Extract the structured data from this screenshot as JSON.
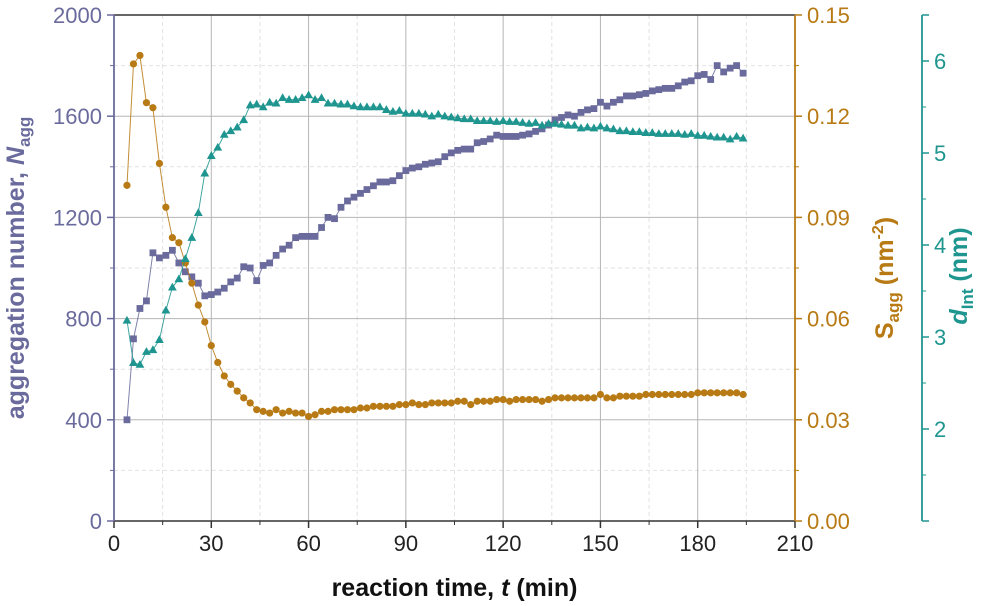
{
  "chart_data": {
    "type": "scatter",
    "xlabel": {
      "main": "reaction time, ",
      "var": "t",
      "unit": " (min)"
    },
    "xlim": [
      0,
      210
    ],
    "xticks": [
      0,
      30,
      60,
      90,
      120,
      150,
      180,
      210
    ],
    "grid": true,
    "axes": {
      "left": {
        "label": {
          "main": "aggregation number, ",
          "var": "N",
          "sub": "agg"
        },
        "ylim": [
          0,
          2000
        ],
        "ticks": [
          0,
          400,
          800,
          1200,
          1600,
          2000
        ],
        "decimals": 0,
        "color": "#6a6b9c"
      },
      "right1": {
        "label": {
          "var": "S",
          "sub": "agg",
          "unit": " (nm",
          "sup": "-2",
          "close": ")"
        },
        "ylim": [
          0,
          0.15
        ],
        "ticks": [
          0,
          0.03,
          0.06,
          0.09,
          0.12,
          0.15
        ],
        "decimals": 2,
        "color": "#b87a14"
      },
      "right2": {
        "label": {
          "var": "d",
          "sub": "Int",
          "unit": " (nm)"
        },
        "ylim": [
          1,
          6.5
        ],
        "ticks": [
          2,
          3,
          4,
          5,
          6
        ],
        "decimals": 0,
        "color": "#1f958f"
      }
    },
    "series": [
      {
        "axis": "left",
        "marker": "square",
        "color": "#6a6b9c",
        "x": [
          4,
          6,
          8,
          10,
          12,
          14,
          16,
          18,
          20,
          22,
          24,
          26,
          28,
          30,
          32,
          34,
          36,
          38,
          40,
          42,
          44,
          46,
          48,
          50,
          52,
          54,
          56,
          58,
          60,
          62,
          64,
          66,
          68,
          70,
          72,
          74,
          76,
          78,
          80,
          82,
          84,
          86,
          88,
          90,
          92,
          94,
          96,
          98,
          100,
          102,
          104,
          106,
          108,
          110,
          112,
          114,
          116,
          118,
          120,
          122,
          124,
          126,
          128,
          130,
          132,
          134,
          136,
          138,
          140,
          142,
          144,
          146,
          148,
          150,
          152,
          154,
          156,
          158,
          160,
          162,
          164,
          166,
          168,
          170,
          172,
          174,
          176,
          178,
          180,
          182,
          184,
          186,
          188,
          190,
          192,
          194
        ],
        "y": [
          400,
          720,
          840,
          870,
          1060,
          1040,
          1050,
          1070,
          1020,
          985,
          965,
          940,
          890,
          895,
          905,
          920,
          945,
          960,
          1005,
          1000,
          950,
          1010,
          1020,
          1050,
          1075,
          1090,
          1120,
          1125,
          1125,
          1125,
          1160,
          1200,
          1195,
          1240,
          1265,
          1280,
          1295,
          1310,
          1325,
          1340,
          1340,
          1345,
          1365,
          1385,
          1395,
          1400,
          1410,
          1415,
          1420,
          1440,
          1455,
          1465,
          1470,
          1470,
          1495,
          1500,
          1510,
          1525,
          1520,
          1520,
          1520,
          1525,
          1530,
          1540,
          1550,
          1565,
          1585,
          1595,
          1605,
          1600,
          1615,
          1625,
          1630,
          1655,
          1640,
          1655,
          1665,
          1680,
          1680,
          1685,
          1690,
          1700,
          1705,
          1710,
          1710,
          1720,
          1735,
          1740,
          1760,
          1765,
          1745,
          1800,
          1775,
          1790,
          1800,
          1770
        ]
      },
      {
        "axis": "right1",
        "marker": "circle",
        "color": "#b87a14",
        "x": [
          4,
          6,
          8,
          10,
          12,
          14,
          16,
          18,
          20,
          22,
          24,
          26,
          28,
          30,
          32,
          34,
          36,
          38,
          40,
          42,
          44,
          46,
          48,
          50,
          52,
          54,
          56,
          58,
          60,
          62,
          64,
          66,
          68,
          70,
          72,
          74,
          76,
          78,
          80,
          82,
          84,
          86,
          88,
          90,
          92,
          94,
          96,
          98,
          100,
          102,
          104,
          106,
          108,
          110,
          112,
          114,
          116,
          118,
          120,
          122,
          124,
          126,
          128,
          130,
          132,
          134,
          136,
          138,
          140,
          142,
          144,
          146,
          148,
          150,
          152,
          154,
          156,
          158,
          160,
          162,
          164,
          166,
          168,
          170,
          172,
          174,
          176,
          178,
          180,
          182,
          184,
          186,
          188,
          190,
          192,
          194
        ],
        "y": [
          0.0995,
          0.1355,
          0.138,
          0.124,
          0.1225,
          0.106,
          0.093,
          0.084,
          0.0825,
          0.0765,
          0.0705,
          0.064,
          0.059,
          0.052,
          0.047,
          0.043,
          0.0405,
          0.0385,
          0.0365,
          0.035,
          0.033,
          0.0325,
          0.032,
          0.033,
          0.032,
          0.0325,
          0.032,
          0.032,
          0.031,
          0.0315,
          0.0325,
          0.0325,
          0.033,
          0.033,
          0.033,
          0.033,
          0.0335,
          0.0335,
          0.034,
          0.034,
          0.034,
          0.034,
          0.0345,
          0.0345,
          0.035,
          0.0345,
          0.0345,
          0.035,
          0.035,
          0.035,
          0.035,
          0.0355,
          0.0355,
          0.0345,
          0.0355,
          0.0355,
          0.0355,
          0.036,
          0.036,
          0.0355,
          0.036,
          0.036,
          0.036,
          0.036,
          0.0355,
          0.036,
          0.0365,
          0.0365,
          0.0365,
          0.0365,
          0.0365,
          0.0365,
          0.0365,
          0.0375,
          0.0365,
          0.0365,
          0.037,
          0.037,
          0.037,
          0.037,
          0.0375,
          0.0375,
          0.0375,
          0.0375,
          0.0375,
          0.0375,
          0.0375,
          0.0375,
          0.038,
          0.038,
          0.038,
          0.038,
          0.038,
          0.038,
          0.038,
          0.0375
        ]
      },
      {
        "axis": "right2",
        "marker": "triangle",
        "color": "#1f958f",
        "x": [
          4,
          6,
          8,
          10,
          12,
          14,
          16,
          18,
          20,
          22,
          24,
          26,
          28,
          30,
          32,
          34,
          36,
          38,
          40,
          42,
          44,
          46,
          48,
          50,
          52,
          54,
          56,
          58,
          60,
          62,
          64,
          66,
          68,
          70,
          72,
          74,
          76,
          78,
          80,
          82,
          84,
          86,
          88,
          90,
          92,
          94,
          96,
          98,
          100,
          102,
          104,
          106,
          108,
          110,
          112,
          114,
          116,
          118,
          120,
          122,
          124,
          126,
          128,
          130,
          132,
          134,
          136,
          138,
          140,
          142,
          144,
          146,
          148,
          150,
          152,
          154,
          156,
          158,
          160,
          162,
          164,
          166,
          168,
          170,
          172,
          174,
          176,
          178,
          180,
          182,
          184,
          186,
          188,
          190,
          192,
          194
        ],
        "y": [
          3.18,
          2.72,
          2.7,
          2.84,
          2.86,
          2.97,
          3.29,
          3.54,
          3.63,
          3.85,
          4.08,
          4.35,
          4.78,
          4.97,
          5.06,
          5.2,
          5.24,
          5.28,
          5.36,
          5.52,
          5.53,
          5.5,
          5.55,
          5.54,
          5.6,
          5.58,
          5.58,
          5.6,
          5.63,
          5.58,
          5.6,
          5.54,
          5.54,
          5.53,
          5.53,
          5.51,
          5.5,
          5.5,
          5.5,
          5.5,
          5.47,
          5.45,
          5.46,
          5.43,
          5.43,
          5.43,
          5.42,
          5.4,
          5.42,
          5.4,
          5.39,
          5.38,
          5.37,
          5.37,
          5.35,
          5.35,
          5.35,
          5.34,
          5.35,
          5.34,
          5.34,
          5.33,
          5.32,
          5.33,
          5.3,
          5.32,
          5.32,
          5.31,
          5.3,
          5.3,
          5.27,
          5.28,
          5.27,
          5.29,
          5.27,
          5.26,
          5.24,
          5.24,
          5.23,
          5.23,
          5.22,
          5.22,
          5.21,
          5.21,
          5.21,
          5.21,
          5.2,
          5.21,
          5.19,
          5.19,
          5.18,
          5.17,
          5.17,
          5.15,
          5.18,
          5.16
        ]
      }
    ]
  }
}
